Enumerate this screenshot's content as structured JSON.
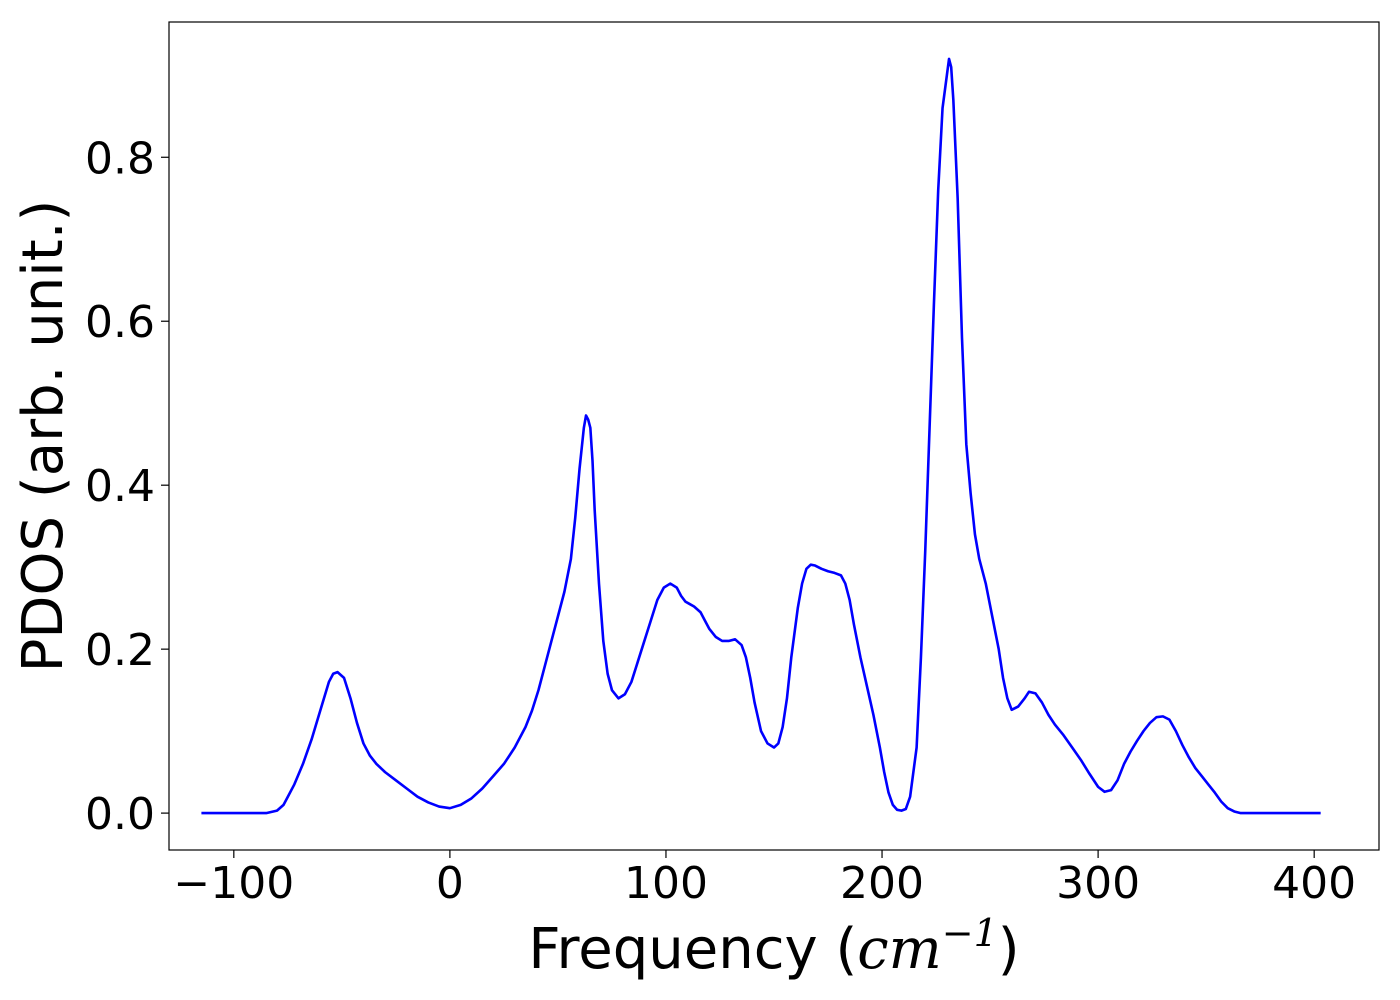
{
  "chart_data": {
    "type": "line",
    "title": "",
    "xlabel": "Frequency",
    "xlabel_unit": "cm",
    "xlabel_unit_exp": "−1",
    "ylabel": "PDOS (arb. unit.)",
    "xlim": [
      -130,
      430
    ],
    "ylim": [
      -0.045,
      0.965
    ],
    "xticks": [
      -100,
      0,
      100,
      200,
      300,
      400
    ],
    "xtick_labels": [
      "−100",
      "0",
      "100",
      "200",
      "300",
      "400"
    ],
    "yticks": [
      0.0,
      0.2,
      0.4,
      0.6,
      0.8
    ],
    "ytick_labels": [
      "0.0",
      "0.2",
      "0.4",
      "0.6",
      "0.8"
    ],
    "grid": false,
    "legend": "none",
    "series": [
      {
        "color": "#0000ff",
        "x": [
          -115,
          -85,
          -80,
          -77,
          -75,
          -72,
          -68,
          -64,
          -60,
          -56,
          -54,
          -52,
          -49,
          -46,
          -43,
          -40,
          -37,
          -34,
          -30,
          -25,
          -20,
          -15,
          -10,
          -5,
          0,
          5,
          10,
          15,
          20,
          25,
          30,
          35,
          38,
          41,
          44,
          47,
          50,
          53,
          56,
          58,
          60,
          62,
          63,
          64,
          65,
          66,
          67,
          69,
          71,
          73,
          75,
          78,
          81,
          84,
          87,
          90,
          93,
          96,
          99,
          102,
          105,
          107,
          109,
          111,
          113,
          116,
          118,
          120,
          123,
          126,
          129,
          132,
          135,
          137,
          139,
          141,
          144,
          147,
          150,
          152,
          154,
          156,
          158,
          161,
          163,
          165,
          167,
          169,
          172,
          175,
          178,
          181,
          183,
          185,
          187,
          190,
          193,
          196,
          199,
          201,
          203,
          205,
          207,
          209,
          211,
          213,
          216,
          218,
          220,
          222,
          224,
          226,
          228,
          230,
          231,
          232,
          233,
          235,
          237,
          239,
          241,
          243,
          245,
          248,
          251,
          254,
          256,
          258,
          260,
          263,
          266,
          268,
          271,
          274,
          277,
          280,
          284,
          288,
          292,
          296,
          300,
          303,
          306,
          309,
          312,
          315,
          318,
          321,
          324,
          327,
          330,
          333,
          336,
          339,
          342,
          345,
          348,
          351,
          354,
          357,
          360,
          363,
          366,
          370,
          380,
          403
        ],
        "y": [
          0.0,
          0.0,
          0.003,
          0.01,
          0.02,
          0.035,
          0.06,
          0.09,
          0.125,
          0.16,
          0.17,
          0.172,
          0.165,
          0.14,
          0.11,
          0.085,
          0.07,
          0.06,
          0.05,
          0.04,
          0.03,
          0.02,
          0.013,
          0.008,
          0.006,
          0.01,
          0.018,
          0.03,
          0.045,
          0.06,
          0.08,
          0.105,
          0.125,
          0.15,
          0.18,
          0.21,
          0.24,
          0.27,
          0.31,
          0.36,
          0.42,
          0.47,
          0.485,
          0.48,
          0.47,
          0.43,
          0.37,
          0.28,
          0.21,
          0.17,
          0.15,
          0.14,
          0.145,
          0.16,
          0.185,
          0.21,
          0.235,
          0.26,
          0.275,
          0.28,
          0.275,
          0.265,
          0.258,
          0.255,
          0.252,
          0.245,
          0.235,
          0.225,
          0.215,
          0.21,
          0.21,
          0.212,
          0.205,
          0.19,
          0.165,
          0.135,
          0.1,
          0.085,
          0.08,
          0.085,
          0.105,
          0.14,
          0.19,
          0.25,
          0.28,
          0.298,
          0.303,
          0.302,
          0.298,
          0.295,
          0.293,
          0.29,
          0.28,
          0.26,
          0.23,
          0.19,
          0.155,
          0.12,
          0.08,
          0.05,
          0.025,
          0.01,
          0.004,
          0.003,
          0.005,
          0.02,
          0.08,
          0.19,
          0.32,
          0.47,
          0.62,
          0.76,
          0.86,
          0.9,
          0.92,
          0.91,
          0.87,
          0.75,
          0.58,
          0.45,
          0.39,
          0.34,
          0.31,
          0.28,
          0.24,
          0.2,
          0.165,
          0.14,
          0.126,
          0.13,
          0.14,
          0.148,
          0.146,
          0.135,
          0.12,
          0.108,
          0.095,
          0.08,
          0.065,
          0.048,
          0.032,
          0.026,
          0.028,
          0.04,
          0.06,
          0.075,
          0.088,
          0.1,
          0.11,
          0.117,
          0.118,
          0.114,
          0.1,
          0.083,
          0.068,
          0.055,
          0.045,
          0.035,
          0.025,
          0.014,
          0.006,
          0.002,
          0.0,
          0.0,
          0.0,
          0.0
        ]
      }
    ]
  }
}
